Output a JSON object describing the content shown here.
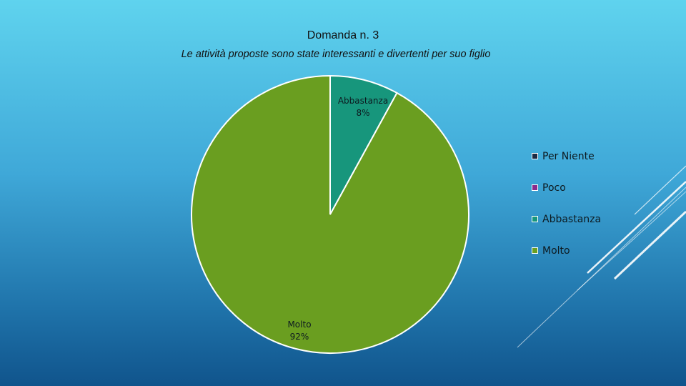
{
  "slide": {
    "title": "Domanda n. 3",
    "subtitle": "Le attività proposte sono state interessanti e divertenti per suo figlio"
  },
  "chart_data": {
    "type": "pie",
    "title": "Domanda n. 3",
    "subtitle": "Le attività proposte sono state interessanti e divertenti per suo figlio",
    "categories": [
      "Per Niente",
      "Poco",
      "Abbastanza",
      "Molto"
    ],
    "values": [
      0,
      0,
      8,
      92
    ],
    "value_labels": [
      "",
      "",
      "8%",
      "92%"
    ],
    "colors": [
      "#1c2a44",
      "#8a2a8c",
      "#17967c",
      "#6a9e20"
    ],
    "legend_position": "right"
  }
}
